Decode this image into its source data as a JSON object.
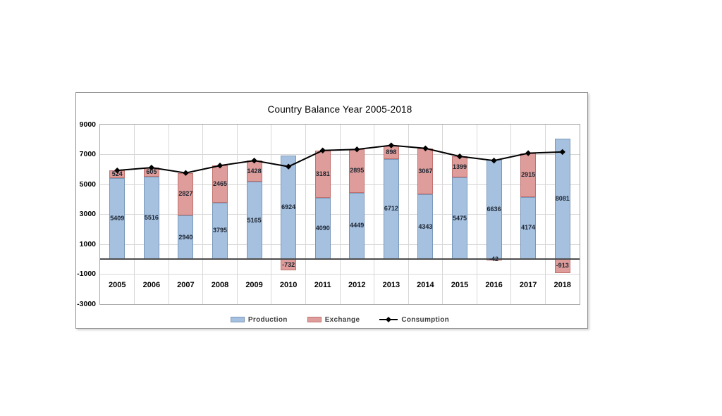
{
  "chart_data": {
    "type": "bar",
    "subtype": "stacked-bar-with-line",
    "title": "Country Balance Year 2005-2018",
    "categories": [
      "2005",
      "2006",
      "2007",
      "2008",
      "2009",
      "2010",
      "2011",
      "2012",
      "2013",
      "2014",
      "2015",
      "2016",
      "2017",
      "2018"
    ],
    "series": [
      {
        "name": "Production",
        "type": "bar",
        "values": [
          5409,
          5516,
          2940,
          3795,
          5165,
          6924,
          4090,
          4449,
          6712,
          4343,
          5475,
          6636,
          4174,
          8081
        ],
        "fill": "#a6c1e0",
        "border": "#7a97b8"
      },
      {
        "name": "Exchange",
        "type": "bar",
        "values": [
          524,
          605,
          2827,
          2465,
          1428,
          -732,
          3181,
          2895,
          898,
          3067,
          1399,
          -42,
          2915,
          -913
        ],
        "fill": "#de9d9a",
        "border": "#bf716e"
      },
      {
        "name": "Consumption",
        "type": "line",
        "values": [
          5933,
          6121,
          5767,
          6260,
          6593,
          6192,
          7271,
          7344,
          7610,
          7410,
          6874,
          6594,
          7089,
          7168
        ],
        "color": "#000000",
        "marker": "diamond"
      }
    ],
    "y_axis": {
      "min": -3000,
      "max": 9000,
      "tick_labels": [
        "9000",
        "7000",
        "5000",
        "3000",
        "1000",
        "-1000",
        "-3000"
      ],
      "tick_values": [
        9000,
        7000,
        5000,
        3000,
        1000,
        -1000,
        -3000
      ]
    },
    "grid": true,
    "legend_position": "bottom",
    "legend": [
      "Production",
      "Exchange",
      "Consumption"
    ]
  }
}
